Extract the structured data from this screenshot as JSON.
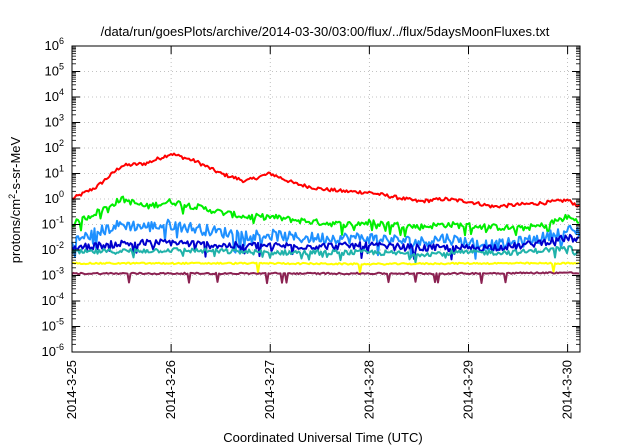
{
  "chart_data": {
    "type": "line",
    "title": "/data/run/goesPlots/archive/2014-03-30/03:00/flux/../flux/5daysMoonFluxes.txt",
    "xlabel": "Coordinated Universal Time (UTC)",
    "ylabel": "protons/cm²-s-sr-MeV",
    "ylabel_parts": {
      "pre": "protons/cm",
      "sup": "2",
      "post": "-s-sr-MeV"
    },
    "yscale": "log",
    "ylim_exp": [
      -6,
      6
    ],
    "y_ticks": [
      {
        "base": "10",
        "exp": "-6"
      },
      {
        "base": "10",
        "exp": "-5"
      },
      {
        "base": "10",
        "exp": "-4"
      },
      {
        "base": "10",
        "exp": "-3"
      },
      {
        "base": "10",
        "exp": "-2"
      },
      {
        "base": "10",
        "exp": "-1"
      },
      {
        "base": "10",
        "exp": "0"
      },
      {
        "base": "10",
        "exp": "1"
      },
      {
        "base": "10",
        "exp": "2"
      },
      {
        "base": "10",
        "exp": "3"
      },
      {
        "base": "10",
        "exp": "4"
      },
      {
        "base": "10",
        "exp": "5"
      },
      {
        "base": "10",
        "exp": "6"
      }
    ],
    "x_ticks": [
      "2014-3-25",
      "2014-3-26",
      "2014-3-27",
      "2014-3-28",
      "2014-3-29",
      "2014-3-30"
    ],
    "xlim": [
      "2014-03-25T00:00",
      "2014-03-30T03:00"
    ],
    "grid": true,
    "series": [
      {
        "color": "#ff0000",
        "points": [
          [
            "2014-03-25T00:00",
            1.0
          ],
          [
            "2014-03-25T06:00",
            3.0
          ],
          [
            "2014-03-25T12:00",
            20
          ],
          [
            "2014-03-25T18:00",
            25
          ],
          [
            "2014-03-26T00:00",
            60
          ],
          [
            "2014-03-26T06:00",
            30
          ],
          [
            "2014-03-26T12:00",
            10
          ],
          [
            "2014-03-26T18:00",
            5
          ],
          [
            "2014-03-27T00:00",
            10
          ],
          [
            "2014-03-27T06:00",
            4
          ],
          [
            "2014-03-27T12:00",
            2.5
          ],
          [
            "2014-03-27T18:00",
            2
          ],
          [
            "2014-03-28T00:00",
            1.8
          ],
          [
            "2014-03-28T06:00",
            1.2
          ],
          [
            "2014-03-28T12:00",
            0.8
          ],
          [
            "2014-03-28T18:00",
            1.0
          ],
          [
            "2014-03-29T00:00",
            0.8
          ],
          [
            "2014-03-29T06:00",
            0.5
          ],
          [
            "2014-03-29T12:00",
            0.6
          ],
          [
            "2014-03-29T18:00",
            0.7
          ],
          [
            "2014-03-30T00:00",
            0.9
          ],
          [
            "2014-03-30T03:00",
            0.5
          ]
        ]
      },
      {
        "color": "#00ee00",
        "points": [
          [
            "2014-03-25T00:00",
            0.1
          ],
          [
            "2014-03-25T06:00",
            0.3
          ],
          [
            "2014-03-25T12:00",
            1.0
          ],
          [
            "2014-03-25T18:00",
            0.5
          ],
          [
            "2014-03-26T00:00",
            0.8
          ],
          [
            "2014-03-26T06:00",
            0.5
          ],
          [
            "2014-03-26T12:00",
            0.3
          ],
          [
            "2014-03-26T18:00",
            0.2
          ],
          [
            "2014-03-27T00:00",
            0.2
          ],
          [
            "2014-03-27T06:00",
            0.15
          ],
          [
            "2014-03-27T12:00",
            0.12
          ],
          [
            "2014-03-27T18:00",
            0.1
          ],
          [
            "2014-03-28T00:00",
            0.12
          ],
          [
            "2014-03-28T06:00",
            0.1
          ],
          [
            "2014-03-28T12:00",
            0.08
          ],
          [
            "2014-03-28T18:00",
            0.1
          ],
          [
            "2014-03-29T00:00",
            0.09
          ],
          [
            "2014-03-29T06:00",
            0.08
          ],
          [
            "2014-03-29T12:00",
            0.07
          ],
          [
            "2014-03-29T18:00",
            0.09
          ],
          [
            "2014-03-30T00:00",
            0.2
          ],
          [
            "2014-03-30T03:00",
            0.12
          ]
        ]
      },
      {
        "color": "#1e90ff",
        "points": [
          [
            "2014-03-25T00:00",
            0.02
          ],
          [
            "2014-03-25T06:00",
            0.05
          ],
          [
            "2014-03-25T12:00",
            0.1
          ],
          [
            "2014-03-25T18:00",
            0.08
          ],
          [
            "2014-03-26T00:00",
            0.1
          ],
          [
            "2014-03-26T06:00",
            0.07
          ],
          [
            "2014-03-26T12:00",
            0.05
          ],
          [
            "2014-03-26T18:00",
            0.04
          ],
          [
            "2014-03-27T00:00",
            0.04
          ],
          [
            "2014-03-27T06:00",
            0.03
          ],
          [
            "2014-03-27T12:00",
            0.03
          ],
          [
            "2014-03-27T18:00",
            0.03
          ],
          [
            "2014-03-28T00:00",
            0.03
          ],
          [
            "2014-03-28T06:00",
            0.025
          ],
          [
            "2014-03-28T12:00",
            0.02
          ],
          [
            "2014-03-28T18:00",
            0.03
          ],
          [
            "2014-03-29T00:00",
            0.02
          ],
          [
            "2014-03-29T06:00",
            0.015
          ],
          [
            "2014-03-29T12:00",
            0.02
          ],
          [
            "2014-03-29T18:00",
            0.03
          ],
          [
            "2014-03-30T00:00",
            0.06
          ],
          [
            "2014-03-30T03:00",
            0.05
          ]
        ]
      },
      {
        "color": "#0000cd",
        "points": [
          [
            "2014-03-25T00:00",
            0.012
          ],
          [
            "2014-03-25T12:00",
            0.018
          ],
          [
            "2014-03-26T00:00",
            0.02
          ],
          [
            "2014-03-26T12:00",
            0.015
          ],
          [
            "2014-03-27T00:00",
            0.015
          ],
          [
            "2014-03-27T12:00",
            0.014
          ],
          [
            "2014-03-28T00:00",
            0.015
          ],
          [
            "2014-03-28T12:00",
            0.012
          ],
          [
            "2014-03-29T00:00",
            0.012
          ],
          [
            "2014-03-29T12:00",
            0.014
          ],
          [
            "2014-03-30T00:00",
            0.03
          ],
          [
            "2014-03-30T03:00",
            0.025
          ]
        ]
      },
      {
        "color": "#20b2aa",
        "points": [
          [
            "2014-03-25T00:00",
            0.008
          ],
          [
            "2014-03-25T12:00",
            0.009
          ],
          [
            "2014-03-26T00:00",
            0.01
          ],
          [
            "2014-03-26T12:00",
            0.009
          ],
          [
            "2014-03-27T00:00",
            0.008
          ],
          [
            "2014-03-27T12:00",
            0.008
          ],
          [
            "2014-03-28T00:00",
            0.008
          ],
          [
            "2014-03-28T12:00",
            0.007
          ],
          [
            "2014-03-29T00:00",
            0.008
          ],
          [
            "2014-03-29T12:00",
            0.008
          ],
          [
            "2014-03-30T00:00",
            0.012
          ],
          [
            "2014-03-30T03:00",
            0.01
          ]
        ]
      },
      {
        "color": "#ffff00",
        "points": [
          [
            "2014-03-25T00:00",
            0.003
          ],
          [
            "2014-03-26T00:00",
            0.003
          ],
          [
            "2014-03-27T00:00",
            0.003
          ],
          [
            "2014-03-28T00:00",
            0.0028
          ],
          [
            "2014-03-29T00:00",
            0.003
          ],
          [
            "2014-03-30T00:00",
            0.003
          ],
          [
            "2014-03-30T03:00",
            0.003
          ]
        ]
      },
      {
        "color": "#8b2252",
        "points": [
          [
            "2014-03-25T00:00",
            0.0012
          ],
          [
            "2014-03-26T00:00",
            0.0012
          ],
          [
            "2014-03-27T00:00",
            0.0012
          ],
          [
            "2014-03-28T00:00",
            0.0012
          ],
          [
            "2014-03-29T00:00",
            0.0012
          ],
          [
            "2014-03-30T00:00",
            0.0013
          ],
          [
            "2014-03-30T03:00",
            0.0012
          ]
        ]
      }
    ]
  }
}
